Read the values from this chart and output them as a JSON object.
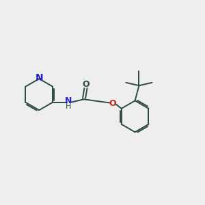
{
  "bg_color": "#eeeeee",
  "bond_color": "#2d4a3e",
  "N_color": "#2020cc",
  "O_color": "#cc2020",
  "bond_width": 1.4,
  "font_size": 9,
  "fig_size": [
    3.0,
    3.0
  ],
  "dpi": 100,
  "xlim": [
    0,
    10
  ],
  "ylim": [
    1,
    8
  ]
}
